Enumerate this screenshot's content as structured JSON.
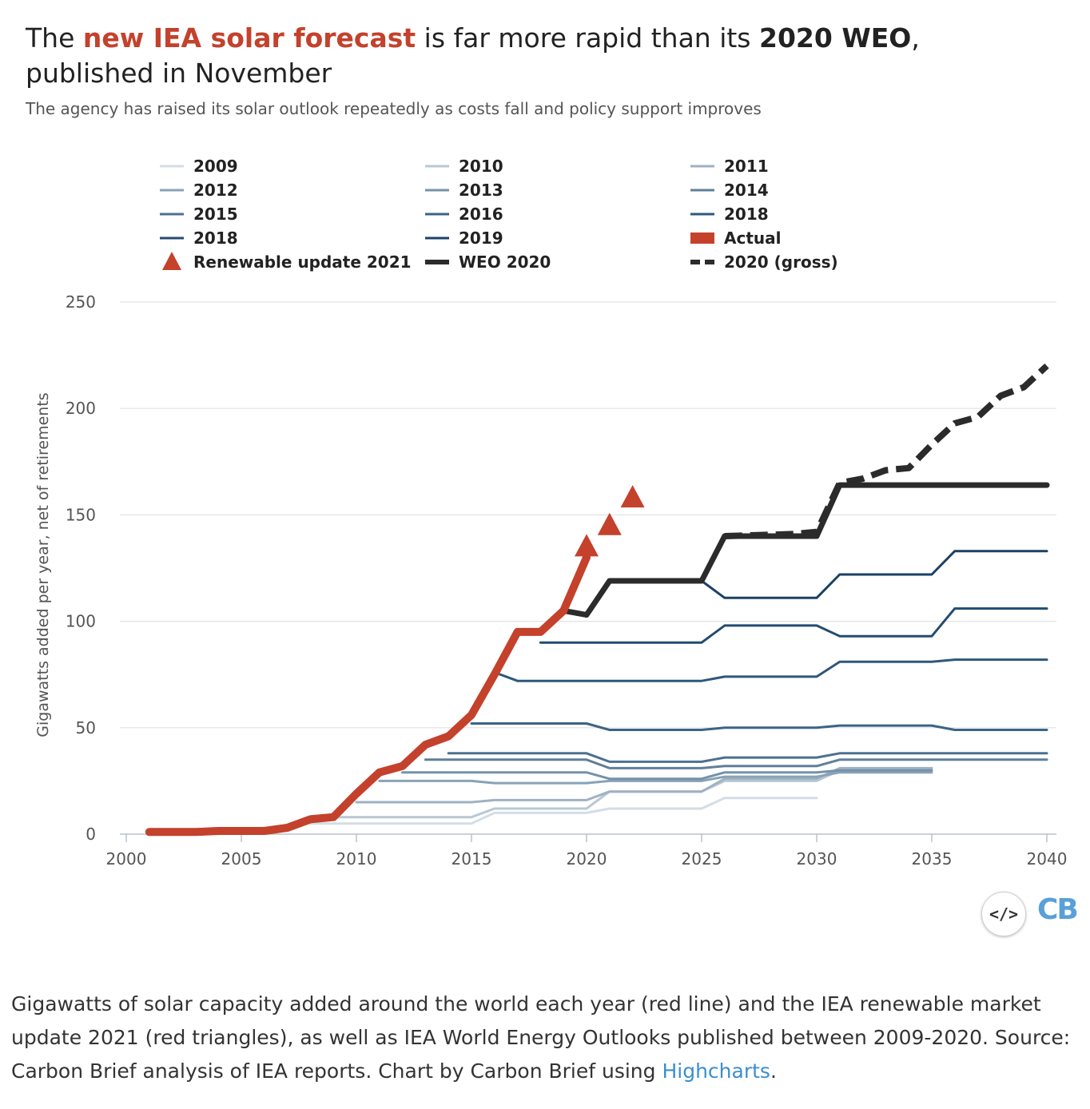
{
  "title": {
    "part1": "The ",
    "highlight_red": "new IEA solar forecast",
    "part2": " is far more rapid than its ",
    "highlight_bold": "2020 WEO",
    "part3": ", published in November"
  },
  "subtitle": "The agency has raised its solar outlook repeatedly as costs fall and policy support improves",
  "caption": {
    "text": "Gigawatts of solar capacity added around the world each year (red line) and the IEA renewable market update 2021 (red triangles), as well as IEA World Energy Outlooks published between 2009-2020. Source: Carbon Brief analysis of IEA reports. Chart by Carbon Brief using ",
    "link": "Highcharts",
    "end": "."
  },
  "badge": {
    "glyph": "</>",
    "icon": "embed-code-icon"
  },
  "logo": "CB",
  "chart_data": {
    "type": "line",
    "ylabel": "Gigawatts added per year, net of retirements",
    "xlabel": "",
    "xlim": [
      2000,
      2040
    ],
    "ylim": [
      0,
      250
    ],
    "xticks": [
      2000,
      2005,
      2010,
      2015,
      2020,
      2025,
      2030,
      2035,
      2040
    ],
    "yticks": [
      0,
      50,
      100,
      150,
      200,
      250
    ],
    "grid": "horizontal",
    "legend_position": "top",
    "series": [
      {
        "name": "2009",
        "color": "#d4dde6",
        "width": 3,
        "style": "solid",
        "points": [
          [
            2008,
            5
          ],
          [
            2015,
            5
          ],
          [
            2016,
            10
          ],
          [
            2020,
            10
          ],
          [
            2021,
            12
          ],
          [
            2025,
            12
          ],
          [
            2026,
            17
          ],
          [
            2030,
            17
          ]
        ]
      },
      {
        "name": "2010",
        "color": "#b9c8d5",
        "width": 3,
        "style": "solid",
        "points": [
          [
            2009,
            8
          ],
          [
            2015,
            8
          ],
          [
            2016,
            12
          ],
          [
            2020,
            12
          ],
          [
            2021,
            20
          ],
          [
            2025,
            20
          ],
          [
            2026,
            25
          ],
          [
            2030,
            25
          ],
          [
            2031,
            30
          ],
          [
            2035,
            30
          ]
        ]
      },
      {
        "name": "2011",
        "color": "#9fb2c3",
        "width": 3,
        "style": "solid",
        "points": [
          [
            2010,
            15
          ],
          [
            2015,
            15
          ],
          [
            2016,
            16
          ],
          [
            2020,
            16
          ],
          [
            2021,
            20
          ],
          [
            2025,
            20
          ],
          [
            2026,
            26
          ],
          [
            2030,
            26
          ],
          [
            2031,
            31
          ],
          [
            2035,
            31
          ]
        ]
      },
      {
        "name": "2012",
        "color": "#89a2b7",
        "width": 3,
        "style": "solid",
        "points": [
          [
            2011,
            25
          ],
          [
            2015,
            25
          ],
          [
            2016,
            24
          ],
          [
            2020,
            24
          ],
          [
            2021,
            25
          ],
          [
            2025,
            25
          ],
          [
            2026,
            27
          ],
          [
            2030,
            27
          ],
          [
            2031,
            29
          ],
          [
            2035,
            29
          ]
        ]
      },
      {
        "name": "2013",
        "color": "#7592aa",
        "width": 3,
        "style": "solid",
        "points": [
          [
            2012,
            29
          ],
          [
            2020,
            29
          ],
          [
            2021,
            26
          ],
          [
            2025,
            26
          ],
          [
            2026,
            29
          ],
          [
            2030,
            29
          ],
          [
            2031,
            30
          ],
          [
            2035,
            30
          ]
        ]
      },
      {
        "name": "2014",
        "color": "#5f7f9a",
        "width": 3,
        "style": "solid",
        "points": [
          [
            2013,
            35
          ],
          [
            2020,
            35
          ],
          [
            2021,
            31
          ],
          [
            2025,
            31
          ],
          [
            2026,
            32
          ],
          [
            2030,
            32
          ],
          [
            2031,
            35
          ],
          [
            2040,
            35
          ]
        ]
      },
      {
        "name": "2015",
        "color": "#4c7090",
        "width": 3,
        "style": "solid",
        "points": [
          [
            2014,
            38
          ],
          [
            2020,
            38
          ],
          [
            2021,
            34
          ],
          [
            2025,
            34
          ],
          [
            2026,
            36
          ],
          [
            2030,
            36
          ],
          [
            2031,
            38
          ],
          [
            2040,
            38
          ]
        ]
      },
      {
        "name": "2016",
        "color": "#3b6486",
        "width": 3,
        "style": "solid",
        "points": [
          [
            2015,
            52
          ],
          [
            2020,
            52
          ],
          [
            2021,
            49
          ],
          [
            2025,
            49
          ],
          [
            2026,
            50
          ],
          [
            2030,
            50
          ],
          [
            2031,
            51
          ],
          [
            2035,
            51
          ],
          [
            2036,
            49
          ],
          [
            2040,
            49
          ]
        ]
      },
      {
        "name": "2018",
        "color": "#2e587c",
        "width": 3,
        "style": "solid",
        "points": [
          [
            2016,
            76
          ],
          [
            2017,
            72
          ],
          [
            2025,
            72
          ],
          [
            2026,
            74
          ],
          [
            2030,
            74
          ],
          [
            2031,
            81
          ],
          [
            2035,
            81
          ],
          [
            2036,
            82
          ],
          [
            2040,
            82
          ]
        ]
      },
      {
        "name": "2018",
        "color": "#234c70",
        "width": 3,
        "style": "solid",
        "points": [
          [
            2018,
            90
          ],
          [
            2025,
            90
          ],
          [
            2026,
            98
          ],
          [
            2030,
            98
          ],
          [
            2031,
            93
          ],
          [
            2035,
            93
          ],
          [
            2036,
            106
          ],
          [
            2040,
            106
          ]
        ]
      },
      {
        "name": "2019",
        "color": "#1b4166",
        "width": 3,
        "style": "solid",
        "points": [
          [
            2025,
            119
          ],
          [
            2026,
            111
          ],
          [
            2030,
            111
          ],
          [
            2031,
            122
          ],
          [
            2035,
            122
          ],
          [
            2036,
            133
          ],
          [
            2040,
            133
          ]
        ]
      },
      {
        "name": "2020 (gross)",
        "color": "#2b2b2b",
        "width": 8,
        "style": "dashed",
        "points": [
          [
            2026,
            140
          ],
          [
            2029,
            141
          ],
          [
            2030,
            142
          ],
          [
            2031,
            165
          ],
          [
            2032,
            167
          ],
          [
            2033,
            171
          ],
          [
            2034,
            172
          ],
          [
            2035,
            183
          ],
          [
            2036,
            193
          ],
          [
            2037,
            196
          ],
          [
            2038,
            206
          ],
          [
            2039,
            210
          ],
          [
            2040,
            220
          ]
        ]
      },
      {
        "name": "WEO 2020",
        "color": "#2b2b2b",
        "width": 7,
        "style": "solid",
        "points": [
          [
            2019,
            105
          ],
          [
            2020,
            103
          ],
          [
            2021,
            119
          ],
          [
            2025,
            119
          ],
          [
            2026,
            140
          ],
          [
            2030,
            140
          ],
          [
            2031,
            164
          ],
          [
            2040,
            164
          ]
        ]
      },
      {
        "name": "Actual",
        "color": "#c4412c",
        "width": 10,
        "style": "solid",
        "points": [
          [
            2001,
            1
          ],
          [
            2002,
            1
          ],
          [
            2003,
            1
          ],
          [
            2004,
            1.5
          ],
          [
            2005,
            1.5
          ],
          [
            2006,
            1.5
          ],
          [
            2007,
            3
          ],
          [
            2008,
            7
          ],
          [
            2009,
            8
          ],
          [
            2010,
            19
          ],
          [
            2011,
            29
          ],
          [
            2012,
            32
          ],
          [
            2013,
            42
          ],
          [
            2014,
            46
          ],
          [
            2015,
            56
          ],
          [
            2016,
            75
          ],
          [
            2017,
            95
          ],
          [
            2018,
            95
          ],
          [
            2019,
            105
          ],
          [
            2020,
            130
          ]
        ]
      }
    ],
    "markers": {
      "name": "Renewable update 2021",
      "color": "#c4412c",
      "shape": "triangle",
      "points": [
        [
          2020,
          135
        ],
        [
          2021,
          145
        ],
        [
          2022,
          158
        ]
      ]
    },
    "legend": [
      {
        "label": "2009",
        "color": "#d4dde6",
        "kind": "line"
      },
      {
        "label": "2010",
        "color": "#b9c8d5",
        "kind": "line"
      },
      {
        "label": "2011",
        "color": "#9fb2c3",
        "kind": "line"
      },
      {
        "label": "2012",
        "color": "#89a2b7",
        "kind": "line"
      },
      {
        "label": "2013",
        "color": "#7592aa",
        "kind": "line"
      },
      {
        "label": "2014",
        "color": "#5f7f9a",
        "kind": "line"
      },
      {
        "label": "2015",
        "color": "#4c7090",
        "kind": "line"
      },
      {
        "label": "2016",
        "color": "#3b6486",
        "kind": "line"
      },
      {
        "label": "2018",
        "color": "#2e587c",
        "kind": "line"
      },
      {
        "label": "2018",
        "color": "#234c70",
        "kind": "line"
      },
      {
        "label": "2019",
        "color": "#1b4166",
        "kind": "line"
      },
      {
        "label": "Actual",
        "color": "#c4412c",
        "kind": "bar"
      },
      {
        "label": "Renewable update 2021",
        "color": "#c4412c",
        "kind": "triangle"
      },
      {
        "label": "WEO 2020",
        "color": "#2b2b2b",
        "kind": "thick"
      },
      {
        "label": "2020 (gross)",
        "color": "#2b2b2b",
        "kind": "dashed"
      }
    ]
  }
}
